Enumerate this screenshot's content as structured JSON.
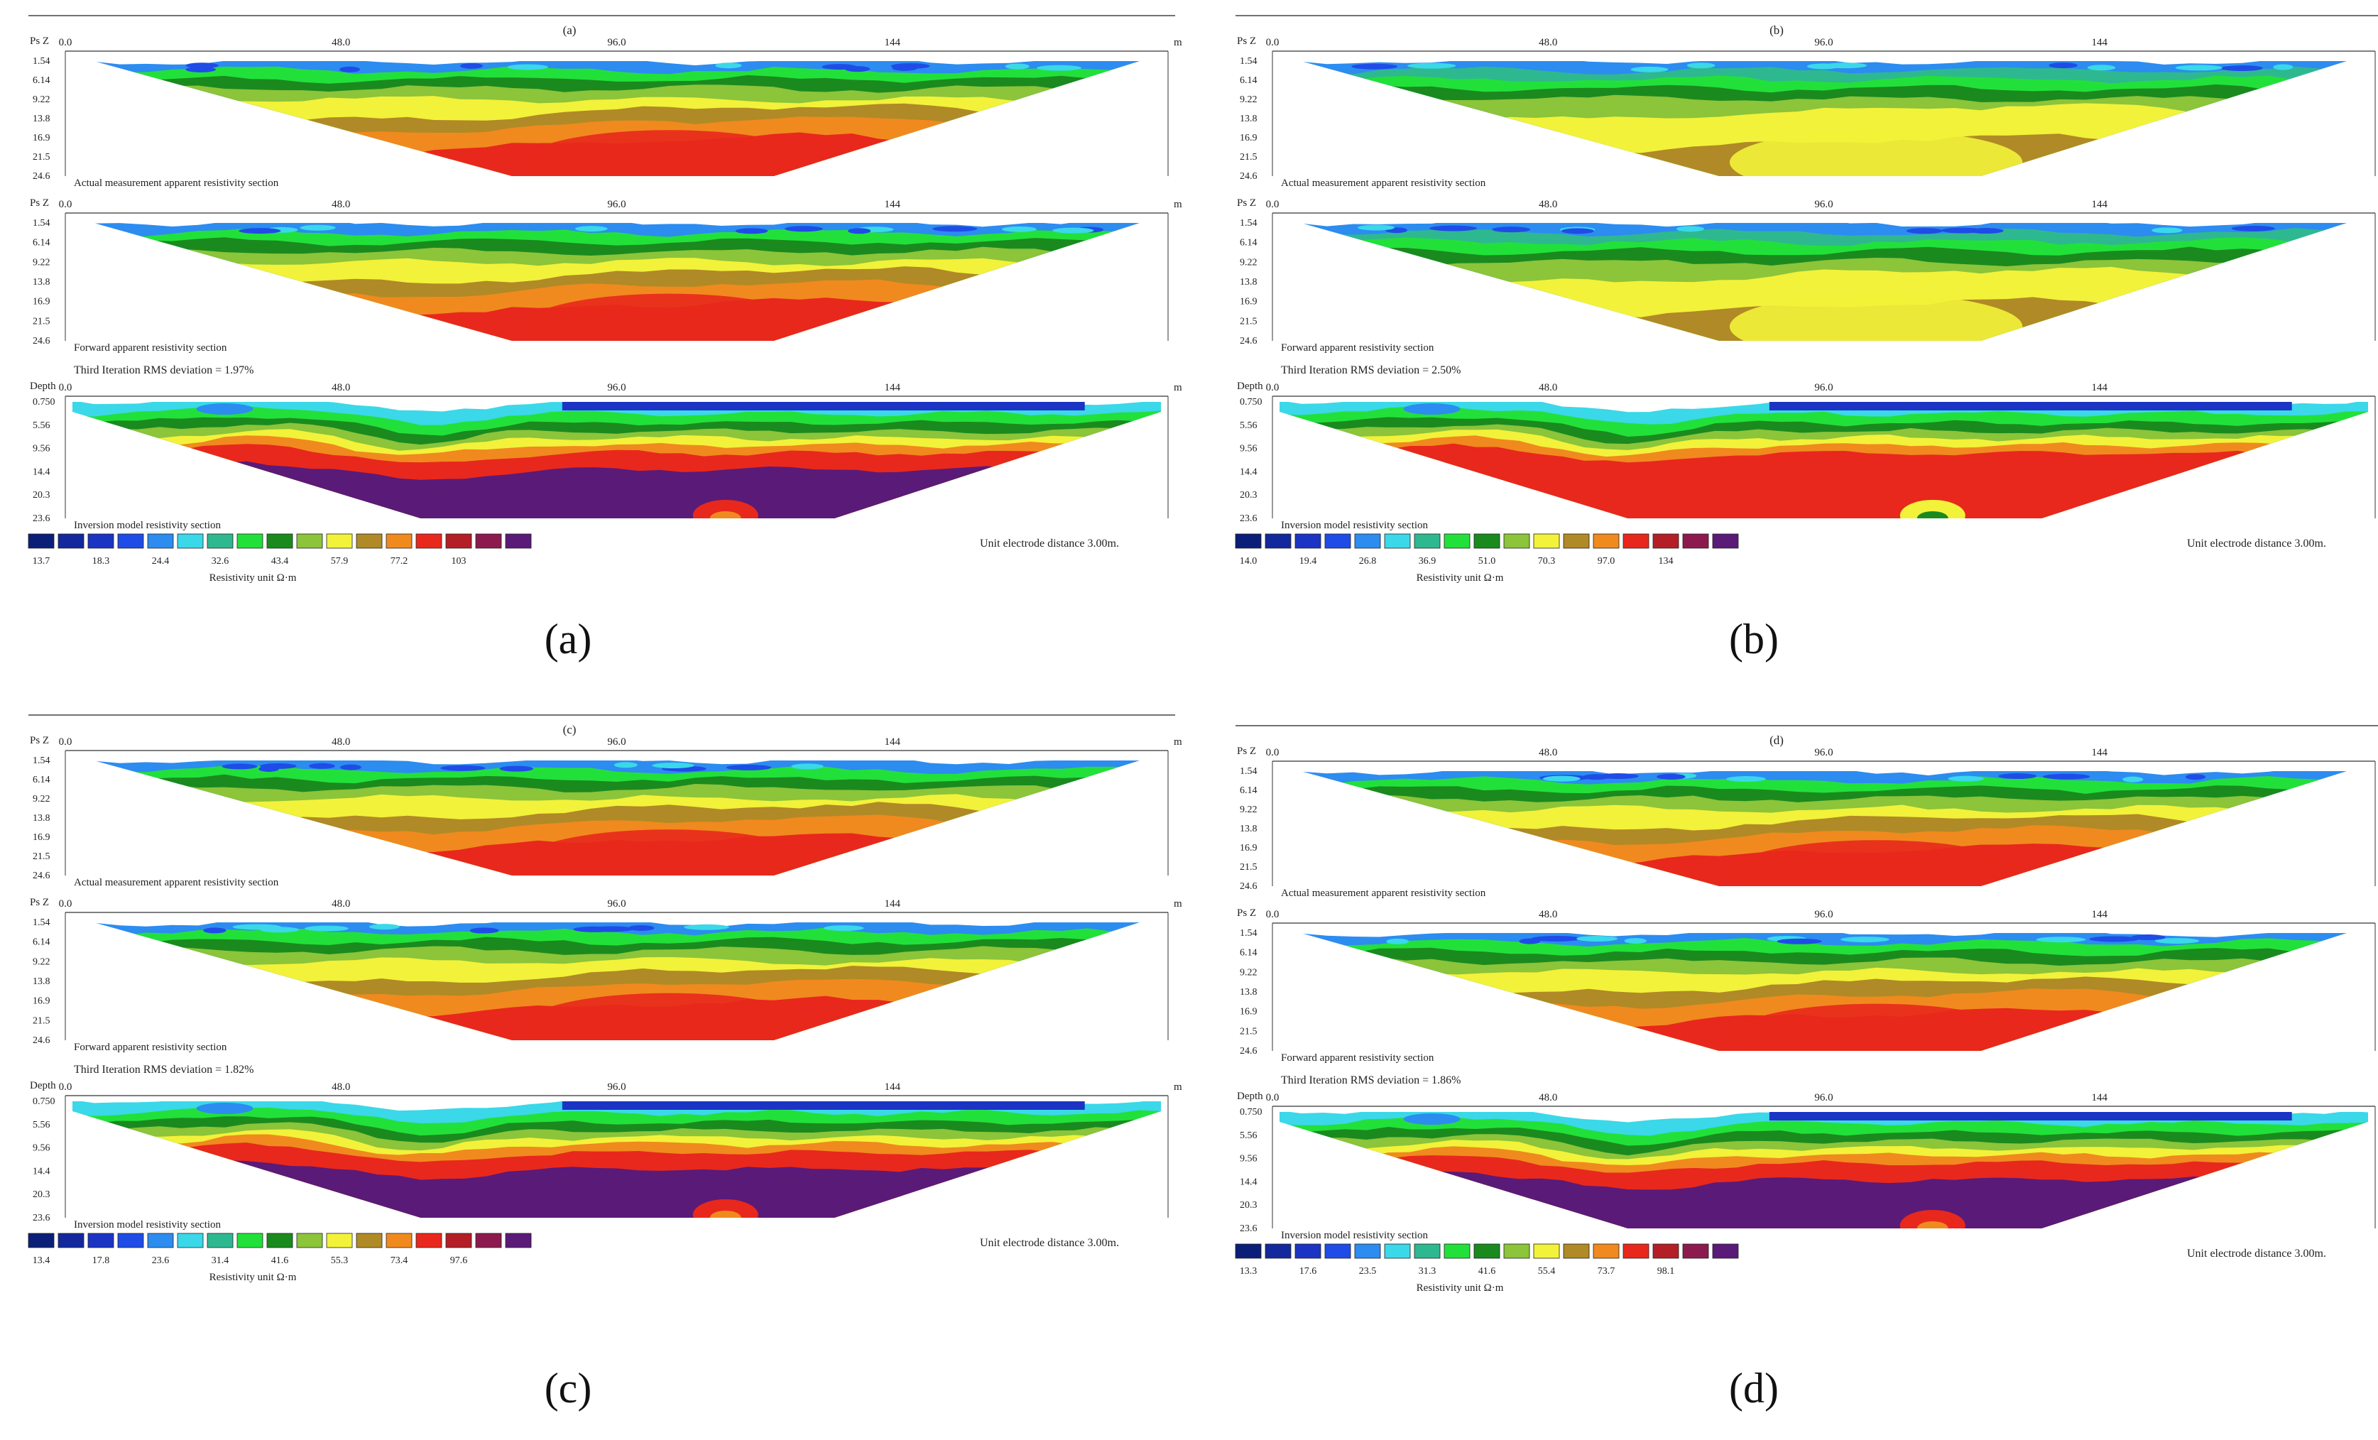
{
  "chart_data": [
    {
      "type": "heatmap",
      "id": "a",
      "caption": "(a)",
      "top_label": "(a)",
      "x_axis": {
        "ticks": [
          "0.0",
          "48.0",
          "96.0",
          "144"
        ],
        "unit": "m",
        "range": [
          0,
          192
        ]
      },
      "sections": [
        {
          "kind": "apparent",
          "axis_label": "Ps Z",
          "depth_ticks": [
            "1.54",
            "6.14",
            "9.22",
            "13.8",
            "16.9",
            "21.5",
            "24.6"
          ],
          "title": "Actual measurement apparent resistivity section",
          "rms": ""
        },
        {
          "kind": "apparent",
          "axis_label": "Ps Z",
          "depth_ticks": [
            "1.54",
            "6.14",
            "9.22",
            "13.8",
            "16.9",
            "21.5",
            "24.6"
          ],
          "title": "Forward apparent resistivity section",
          "rms": ""
        },
        {
          "kind": "inversion",
          "axis_label": "Depth",
          "depth_ticks": [
            "0.750",
            "5.56",
            "9.56",
            "14.4",
            "20.3",
            "23.6"
          ],
          "title": "Inversion model resistivity section",
          "rms": "Third Iteration RMS deviation = 1.97%"
        }
      ],
      "legend": {
        "labels": [
          "13.7",
          "18.3",
          "24.4",
          "32.6",
          "43.4",
          "57.9",
          "77.2",
          "103"
        ],
        "unit_label": "Resistivity unit Ω·m"
      },
      "electrode_note": "Unit electrode distance 3.00m."
    },
    {
      "type": "heatmap",
      "id": "b",
      "caption": "(b)",
      "top_label": "(b)",
      "x_axis": {
        "ticks": [
          "0.0",
          "48.0",
          "96.0",
          "144"
        ],
        "unit": "m",
        "range": [
          0,
          192
        ]
      },
      "sections": [
        {
          "kind": "apparent",
          "axis_label": "Ps Z",
          "depth_ticks": [
            "1.54",
            "6.14",
            "9.22",
            "13.8",
            "16.9",
            "21.5",
            "24.6"
          ],
          "title": "Actual measurement apparent resistivity section",
          "rms": ""
        },
        {
          "kind": "apparent",
          "axis_label": "Ps Z",
          "depth_ticks": [
            "1.54",
            "6.14",
            "9.22",
            "13.8",
            "16.9",
            "21.5",
            "24.6"
          ],
          "title": "Forward apparent resistivity section",
          "rms": ""
        },
        {
          "kind": "inversion",
          "axis_label": "Depth",
          "depth_ticks": [
            "0.750",
            "5.56",
            "9.56",
            "14.4",
            "20.3",
            "23.6"
          ],
          "title": "Inversion model resistivity section",
          "rms": "Third Iteration RMS deviation = 2.50%"
        }
      ],
      "legend": {
        "labels": [
          "14.0",
          "19.4",
          "26.8",
          "36.9",
          "51.0",
          "70.3",
          "97.0",
          "134"
        ],
        "unit_label": "Resistivity unit Ω·m"
      },
      "electrode_note": "Unit electrode distance 3.00m."
    },
    {
      "type": "heatmap",
      "id": "c",
      "caption": "(c)",
      "top_label": "(c)",
      "x_axis": {
        "ticks": [
          "0.0",
          "48.0",
          "96.0",
          "144"
        ],
        "unit": "m",
        "range": [
          0,
          192
        ]
      },
      "sections": [
        {
          "kind": "apparent",
          "axis_label": "Ps Z",
          "depth_ticks": [
            "1.54",
            "6.14",
            "9.22",
            "13.8",
            "16.9",
            "21.5",
            "24.6"
          ],
          "title": "Actual measurement apparent resistivity section",
          "rms": ""
        },
        {
          "kind": "apparent",
          "axis_label": "Ps Z",
          "depth_ticks": [
            "1.54",
            "6.14",
            "9.22",
            "13.8",
            "16.9",
            "21.5",
            "24.6"
          ],
          "title": "Forward apparent resistivity section",
          "rms": ""
        },
        {
          "kind": "inversion",
          "axis_label": "Depth",
          "depth_ticks": [
            "0.750",
            "5.56",
            "9.56",
            "14.4",
            "20.3",
            "23.6"
          ],
          "title": "Inversion model resistivity section",
          "rms": "Third Iteration RMS deviation = 1.82%"
        }
      ],
      "legend": {
        "labels": [
          "13.4",
          "17.8",
          "23.6",
          "31.4",
          "41.6",
          "55.3",
          "73.4",
          "97.6"
        ],
        "unit_label": "Resistivity unit Ω·m"
      },
      "electrode_note": "Unit electrode distance 3.00m."
    },
    {
      "type": "heatmap",
      "id": "d",
      "caption": "(d)",
      "top_label": "(d)",
      "x_axis": {
        "ticks": [
          "0.0",
          "48.0",
          "96.0",
          "144"
        ],
        "unit": "m",
        "range": [
          0,
          192
        ]
      },
      "sections": [
        {
          "kind": "apparent",
          "axis_label": "Ps Z",
          "depth_ticks": [
            "1.54",
            "6.14",
            "9.22",
            "13.8",
            "16.9",
            "21.5",
            "24.6"
          ],
          "title": "Actual measurement apparent resistivity section",
          "rms": ""
        },
        {
          "kind": "apparent",
          "axis_label": "Ps Z",
          "depth_ticks": [
            "1.54",
            "6.14",
            "9.22",
            "13.8",
            "16.9",
            "21.5",
            "24.6"
          ],
          "title": "Forward apparent resistivity section",
          "rms": ""
        },
        {
          "kind": "inversion",
          "axis_label": "Depth",
          "depth_ticks": [
            "0.750",
            "5.56",
            "9.56",
            "14.4",
            "20.3",
            "23.6"
          ],
          "title": "Inversion model resistivity section",
          "rms": "Third Iteration RMS deviation = 1.86%"
        }
      ],
      "legend": {
        "labels": [
          "13.3",
          "17.6",
          "23.5",
          "31.3",
          "41.6",
          "55.4",
          "73.7",
          "98.1"
        ],
        "unit_label": "Resistivity unit Ω·m"
      },
      "electrode_note": "Unit electrode distance 3.00m."
    }
  ],
  "palette": [
    "#0b1f78",
    "#12289c",
    "#1c34c4",
    "#1f4ce6",
    "#2c8cf0",
    "#3ad8e8",
    "#2eb890",
    "#22e03a",
    "#1a8a1e",
    "#8cc43a",
    "#f2f23a",
    "#b08a26",
    "#f08a1e",
    "#e8281c",
    "#b41e26",
    "#8c1a4e",
    "#5a1a78"
  ]
}
